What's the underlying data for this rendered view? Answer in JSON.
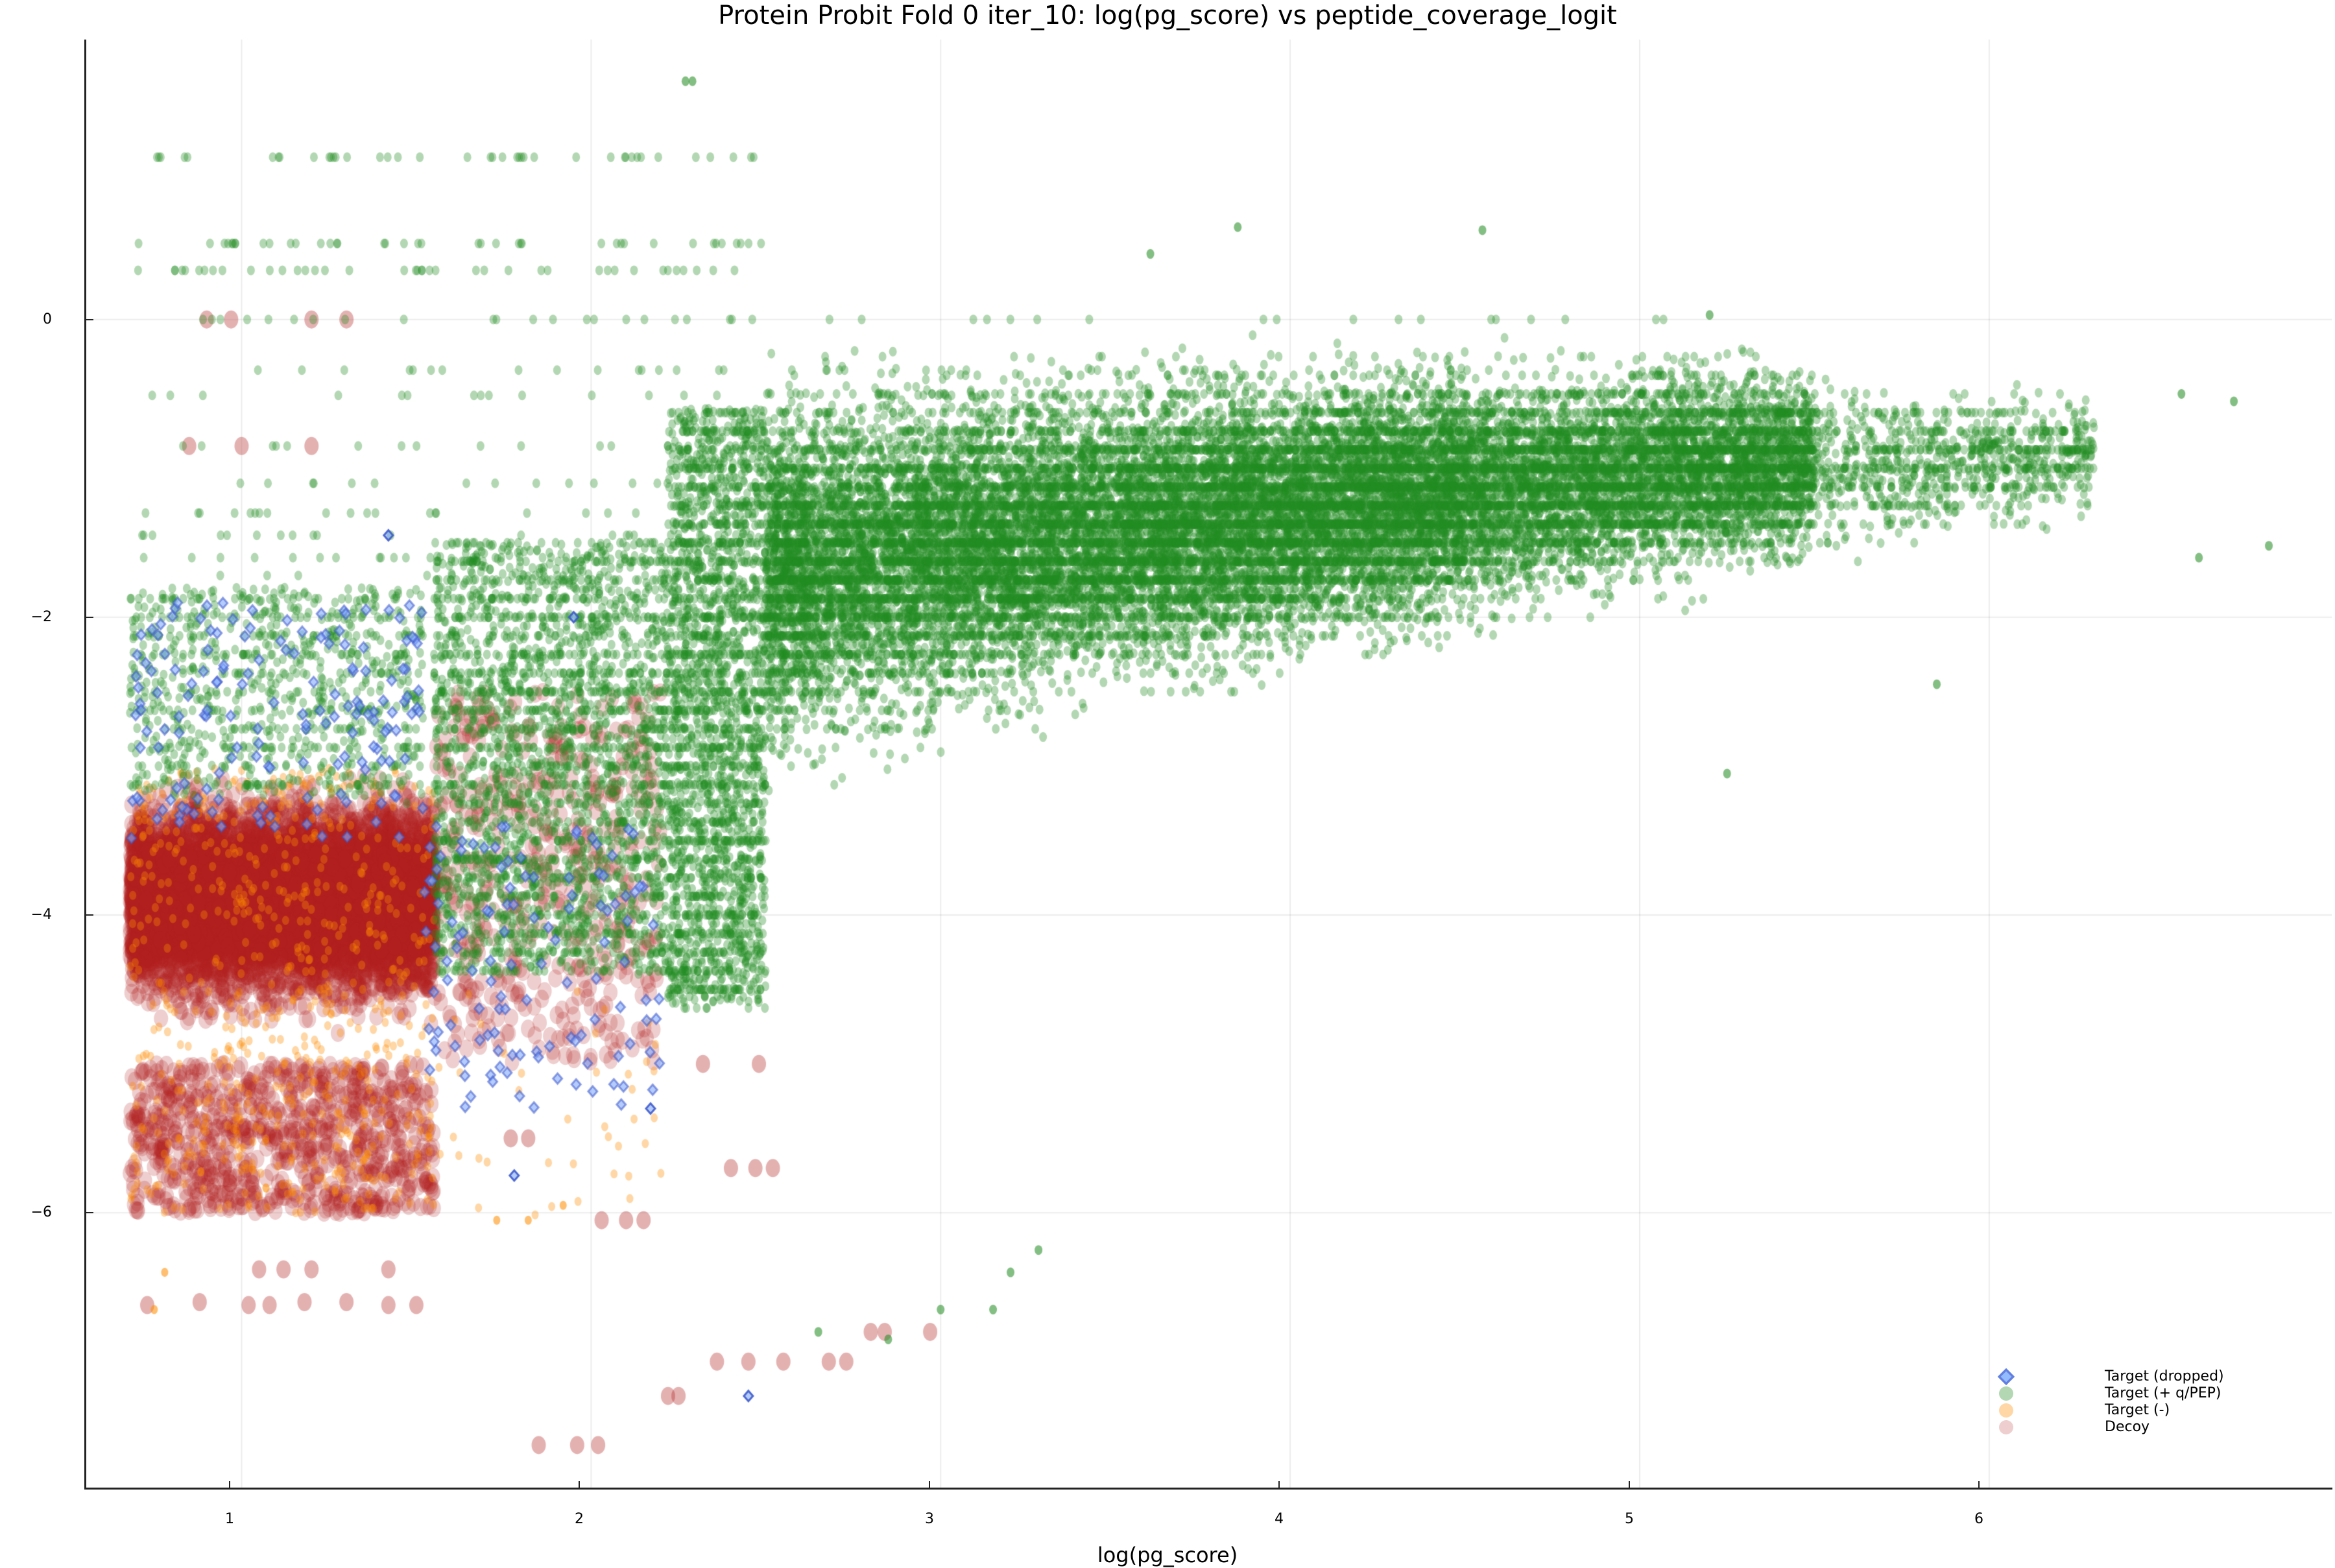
{
  "chart_data": {
    "type": "scatter",
    "title": "Protein Probit Fold 0 iter_10: log(pg_score) vs peptide_coverage_logit",
    "xlabel": "log(pg_score)",
    "ylabel": "",
    "xlim": [
      0.55,
      6.98
    ],
    "ylim": [
      -7.85,
      1.88
    ],
    "xticks": [
      1,
      2,
      3,
      4,
      5,
      6
    ],
    "yticks": [
      0,
      -2,
      -4,
      -6
    ],
    "ytick_labels": [
      "0",
      "−2",
      "−4",
      "−6"
    ],
    "grid": true,
    "legend_position": "bottom-right",
    "series": [
      {
        "name": "Target (dropped)",
        "marker": "diamond",
        "color": "#3a56c8",
        "alpha": 0.55,
        "description": "Sparse points concentrated at x 0.7–2.5, y -5.3 to -1.9",
        "clusters": [
          {
            "x": [
              0.68,
              1.52
            ],
            "y": [
              -3.5,
              -1.9
            ],
            "n": 160
          },
          {
            "x": [
              1.52,
              2.2
            ],
            "y": [
              -5.3,
              -3.4
            ],
            "n": 120
          }
        ],
        "points": [
          [
            2.45,
            -7.23
          ],
          [
            1.78,
            -5.75
          ],
          [
            2.17,
            -5.3
          ],
          [
            1.42,
            -1.45
          ],
          [
            1.95,
            -2.0
          ]
        ]
      },
      {
        "name": "Target (+ q/PEP)",
        "marker": "circle",
        "color": "#228b22",
        "alpha": 0.35,
        "description": "Main dense cloud spanning x 0.7–6.8; dense core x 2.5–5.5, y -3 to -0.5; fan-shaped upper edge near y 0, lower boundary rising from (2.5,-4.5) to (6.8,-1.5)",
        "clusters": [
          {
            "x": [
              0.68,
              1.52
            ],
            "y": [
              -3.2,
              -1.8
            ],
            "n": 900
          },
          {
            "x": [
              1.55,
              2.22
            ],
            "y": [
              -4.4,
              -1.5
            ],
            "n": 2600
          },
          {
            "x": [
              2.22,
              2.62
            ],
            "y": [
              -4.6,
              -0.6
            ],
            "n": 3500
          },
          {
            "x": [
              2.62,
              3.5
            ],
            "y": [
              -4.2,
              -0.3
            ],
            "n": 6500
          },
          {
            "x": [
              3.5,
              4.5
            ],
            "y": [
              -3.8,
              -0.2
            ],
            "n": 8000
          },
          {
            "x": [
              4.5,
              5.5
            ],
            "y": [
              -3.0,
              -0.2
            ],
            "n": 5500
          },
          {
            "x": [
              5.5,
              6.3
            ],
            "y": [
              -2.4,
              -0.5
            ],
            "n": 900
          }
        ],
        "rows_y": [
          1.09,
          0.51,
          0.33,
          0.0,
          -0.34,
          -0.51,
          -0.85,
          -1.1,
          -1.3,
          -1.45,
          -1.6,
          -1.72
        ],
        "points": [
          [
            2.29,
            1.6
          ],
          [
            2.27,
            1.6
          ],
          [
            3.6,
            0.44
          ],
          [
            3.85,
            0.62
          ],
          [
            4.55,
            0.6
          ],
          [
            5.2,
            0.03
          ],
          [
            6.55,
            -0.5
          ],
          [
            6.7,
            -0.55
          ],
          [
            6.8,
            -1.52
          ],
          [
            6.6,
            -1.6
          ],
          [
            5.85,
            -2.45
          ],
          [
            5.25,
            -3.05
          ],
          [
            3.28,
            -6.25
          ],
          [
            3.2,
            -6.4
          ],
          [
            3.15,
            -6.65
          ],
          [
            3.0,
            -6.65
          ],
          [
            2.85,
            -6.85
          ],
          [
            2.65,
            -6.8
          ]
        ]
      },
      {
        "name": "Target (-)",
        "marker": "circle",
        "color": "#ff8c00",
        "alpha": 0.35,
        "description": "Sparse small points mixed into decoy region, mostly x 0.7–1.55, y -6.6 to -3",
        "clusters": [
          {
            "x": [
              0.68,
              1.55
            ],
            "y": [
              -6.0,
              -3.0
            ],
            "n": 700
          },
          {
            "x": [
              1.55,
              2.2
            ],
            "y": [
              -6.05,
              -4.5
            ],
            "n": 40
          }
        ],
        "points": [
          [
            0.78,
            -6.4
          ],
          [
            0.75,
            -6.65
          ],
          [
            1.73,
            -6.05
          ],
          [
            1.82,
            -6.05
          ],
          [
            1.92,
            -5.95
          ]
        ]
      },
      {
        "name": "Decoy",
        "marker": "circle",
        "color": "#b22222",
        "alpha": 0.22,
        "description": "Dense block x 0.68–1.55, y -6.0 to -2.0 centered near -4; sparse rows to the right up to x ~3",
        "clusters": [
          {
            "x": [
              0.68,
              1.55
            ],
            "y": [
              -5.0,
              -2.0
            ],
            "n": 9000
          },
          {
            "x": [
              0.68,
              1.55
            ],
            "y": [
              -6.0,
              -5.0
            ],
            "n": 900
          },
          {
            "x": [
              1.55,
              2.2
            ],
            "y": [
              -5.0,
              -2.5
            ],
            "n": 500
          }
        ],
        "points": [
          [
            0.9,
            0.0
          ],
          [
            0.97,
            0.0
          ],
          [
            1.2,
            0.0
          ],
          [
            1.3,
            0.0
          ],
          [
            0.85,
            -0.85
          ],
          [
            1.0,
            -0.85
          ],
          [
            1.2,
            -0.85
          ],
          [
            1.05,
            -6.38
          ],
          [
            1.12,
            -6.38
          ],
          [
            1.2,
            -6.38
          ],
          [
            1.42,
            -6.38
          ],
          [
            0.73,
            -6.62
          ],
          [
            0.88,
            -6.6
          ],
          [
            1.02,
            -6.62
          ],
          [
            1.08,
            -6.62
          ],
          [
            1.18,
            -6.6
          ],
          [
            1.3,
            -6.6
          ],
          [
            1.42,
            -6.62
          ],
          [
            1.5,
            -6.62
          ],
          [
            1.85,
            -7.56
          ],
          [
            1.96,
            -7.56
          ],
          [
            2.02,
            -7.56
          ],
          [
            2.22,
            -7.23
          ],
          [
            2.25,
            -7.23
          ],
          [
            2.36,
            -7.0
          ],
          [
            2.45,
            -7.0
          ],
          [
            2.55,
            -7.0
          ],
          [
            2.68,
            -7.0
          ],
          [
            2.73,
            -7.0
          ],
          [
            2.8,
            -6.8
          ],
          [
            2.84,
            -6.8
          ],
          [
            2.97,
            -6.8
          ],
          [
            2.4,
            -5.7
          ],
          [
            2.47,
            -5.7
          ],
          [
            2.52,
            -5.7
          ],
          [
            2.03,
            -6.05
          ],
          [
            2.1,
            -6.05
          ],
          [
            2.15,
            -6.05
          ],
          [
            1.82,
            -5.5
          ],
          [
            1.77,
            -5.5
          ],
          [
            2.32,
            -5.0
          ],
          [
            2.48,
            -5.0
          ]
        ]
      }
    ]
  },
  "legend": {
    "items": [
      {
        "label": "Target (dropped)"
      },
      {
        "label": "Target (+ q/PEP)"
      },
      {
        "label": "Target (-)"
      },
      {
        "label": "Decoy"
      }
    ]
  }
}
